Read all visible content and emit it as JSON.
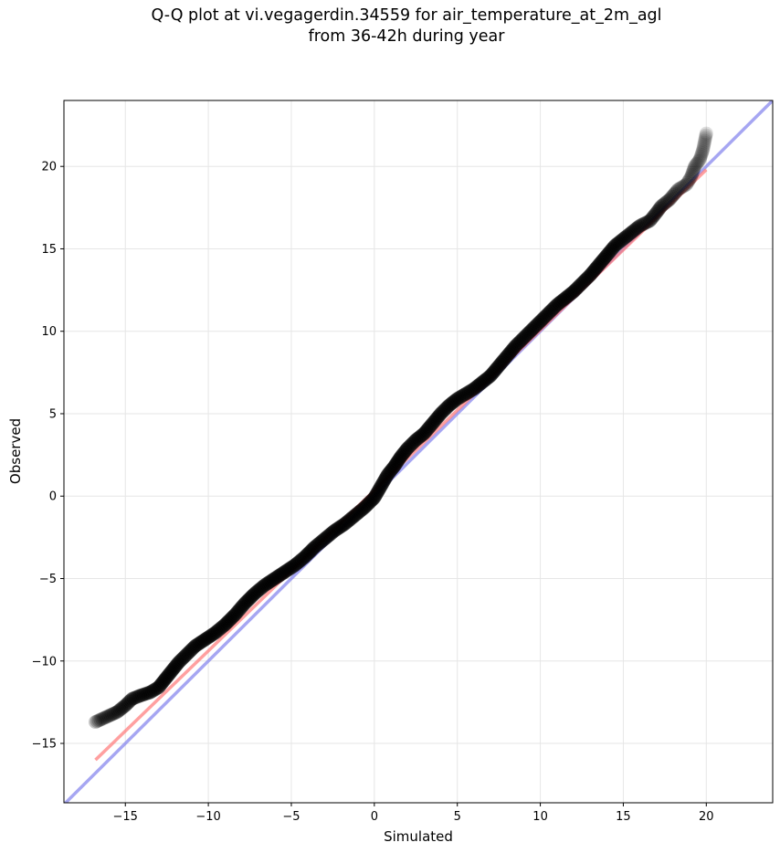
{
  "chart_data": {
    "type": "scatter",
    "title_lines": [
      "Q-Q plot at vi.vegagerdin.34559 for air_temperature_at_2m_agl",
      "from 36-42h during year"
    ],
    "xlabel": "Simulated",
    "ylabel": "Observed",
    "xlim": [
      -18.7,
      24.0
    ],
    "ylim": [
      -18.6,
      24.0
    ],
    "xticks": [
      -15,
      -10,
      -5,
      0,
      5,
      10,
      15,
      20
    ],
    "yticks": [
      -15,
      -10,
      -5,
      0,
      5,
      10,
      15,
      20
    ],
    "xtick_labels": [
      "−15",
      "−10",
      "−5",
      "0",
      "5",
      "10",
      "15",
      "20"
    ],
    "ytick_labels": [
      "−15",
      "−10",
      "−5",
      "0",
      "5",
      "10",
      "15",
      "20"
    ],
    "grid": true,
    "colors": {
      "points": "#000000",
      "identity_line": "#8888ee",
      "fit_line": "#ff7777",
      "overlap": "#6b1d5a"
    },
    "identity_line": {
      "x": [
        -18.7,
        24.0
      ],
      "y": [
        -18.7,
        24.0
      ]
    },
    "fit_line": {
      "x": [
        -16.8,
        20.0
      ],
      "y": [
        -16.0,
        19.8
      ]
    },
    "quantile_points": [
      [
        -16.8,
        -13.7
      ],
      [
        -15.5,
        -13.1
      ],
      [
        -15.0,
        -12.7
      ],
      [
        -14.6,
        -12.3
      ],
      [
        -14.1,
        -12.1
      ],
      [
        -13.5,
        -11.9
      ],
      [
        -13.0,
        -11.6
      ],
      [
        -12.6,
        -11.1
      ],
      [
        -12.2,
        -10.6
      ],
      [
        -11.8,
        -10.1
      ],
      [
        -11.3,
        -9.6
      ],
      [
        -10.8,
        -9.1
      ],
      [
        -10.2,
        -8.7
      ],
      [
        -9.6,
        -8.3
      ],
      [
        -9.0,
        -7.8
      ],
      [
        -8.4,
        -7.2
      ],
      [
        -7.8,
        -6.5
      ],
      [
        -7.2,
        -5.9
      ],
      [
        -6.6,
        -5.4
      ],
      [
        -6.0,
        -5.0
      ],
      [
        -5.4,
        -4.6
      ],
      [
        -4.8,
        -4.2
      ],
      [
        -4.2,
        -3.7
      ],
      [
        -3.6,
        -3.1
      ],
      [
        -3.0,
        -2.6
      ],
      [
        -2.4,
        -2.1
      ],
      [
        -1.8,
        -1.7
      ],
      [
        -1.2,
        -1.2
      ],
      [
        -0.6,
        -0.7
      ],
      [
        0.0,
        -0.1
      ],
      [
        0.4,
        0.6
      ],
      [
        0.8,
        1.3
      ],
      [
        1.2,
        1.8
      ],
      [
        1.6,
        2.4
      ],
      [
        2.0,
        2.9
      ],
      [
        2.5,
        3.4
      ],
      [
        3.0,
        3.8
      ],
      [
        3.5,
        4.4
      ],
      [
        4.0,
        5.0
      ],
      [
        4.5,
        5.5
      ],
      [
        5.0,
        5.9
      ],
      [
        5.5,
        6.2
      ],
      [
        6.0,
        6.5
      ],
      [
        6.5,
        6.9
      ],
      [
        7.0,
        7.3
      ],
      [
        7.5,
        7.9
      ],
      [
        8.0,
        8.5
      ],
      [
        8.5,
        9.1
      ],
      [
        9.0,
        9.6
      ],
      [
        9.5,
        10.1
      ],
      [
        10.0,
        10.6
      ],
      [
        10.5,
        11.1
      ],
      [
        11.0,
        11.6
      ],
      [
        11.5,
        12.0
      ],
      [
        12.0,
        12.4
      ],
      [
        12.5,
        12.9
      ],
      [
        13.0,
        13.4
      ],
      [
        13.5,
        14.0
      ],
      [
        14.0,
        14.6
      ],
      [
        14.5,
        15.2
      ],
      [
        15.0,
        15.6
      ],
      [
        15.5,
        16.0
      ],
      [
        16.0,
        16.4
      ],
      [
        16.6,
        16.7
      ],
      [
        17.0,
        17.2
      ],
      [
        17.3,
        17.6
      ],
      [
        17.8,
        18.0
      ],
      [
        18.3,
        18.6
      ],
      [
        18.8,
        18.9
      ],
      [
        19.1,
        19.4
      ],
      [
        19.3,
        20.0
      ],
      [
        19.6,
        20.4
      ],
      [
        19.8,
        21.0
      ],
      [
        20.0,
        22.0
      ]
    ]
  }
}
